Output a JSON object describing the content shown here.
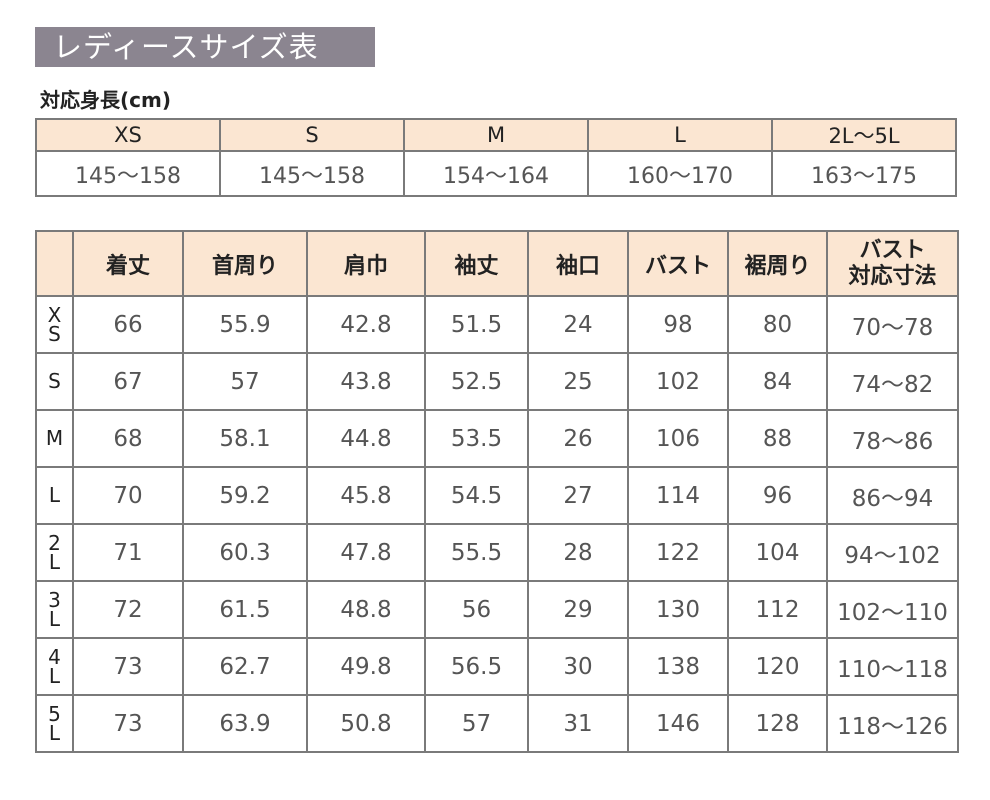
{
  "title": "レディースサイズ表",
  "height_label": "対応身長(cm)",
  "height_table": {
    "sizes": [
      "XS",
      "S",
      "M",
      "L",
      "2L～5L"
    ],
    "ranges": [
      "145～158",
      "145～158",
      "154～164",
      "160～170",
      "163～175"
    ]
  },
  "size_table": {
    "headers": [
      "着丈",
      "首周り",
      "肩巾",
      "袖丈",
      "袖口",
      "バスト",
      "裾周り",
      "バスト\n対応寸法"
    ],
    "rows": [
      {
        "size": "XS",
        "values": [
          "66",
          "55.9",
          "42.8",
          "51.5",
          "24",
          "98",
          "80",
          "70～78"
        ]
      },
      {
        "size": "S",
        "values": [
          "67",
          "57",
          "43.8",
          "52.5",
          "25",
          "102",
          "84",
          "74～82"
        ]
      },
      {
        "size": "M",
        "values": [
          "68",
          "58.1",
          "44.8",
          "53.5",
          "26",
          "106",
          "88",
          "78～86"
        ]
      },
      {
        "size": "L",
        "values": [
          "70",
          "59.2",
          "45.8",
          "54.5",
          "27",
          "114",
          "96",
          "86～94"
        ]
      },
      {
        "size": "2L",
        "values": [
          "71",
          "60.3",
          "47.8",
          "55.5",
          "28",
          "122",
          "104",
          "94～102"
        ]
      },
      {
        "size": "3L",
        "values": [
          "72",
          "61.5",
          "48.8",
          "56",
          "29",
          "130",
          "112",
          "102～110"
        ]
      },
      {
        "size": "4L",
        "values": [
          "73",
          "62.7",
          "49.8",
          "56.5",
          "30",
          "138",
          "120",
          "110～118"
        ]
      },
      {
        "size": "5L",
        "values": [
          "73",
          "63.9",
          "50.8",
          "57",
          "31",
          "146",
          "128",
          "118～126"
        ]
      }
    ]
  },
  "colors": {
    "title_bg": "#8b8590",
    "header_bg": "#fbe6d2",
    "border": "#7a7a7a"
  }
}
